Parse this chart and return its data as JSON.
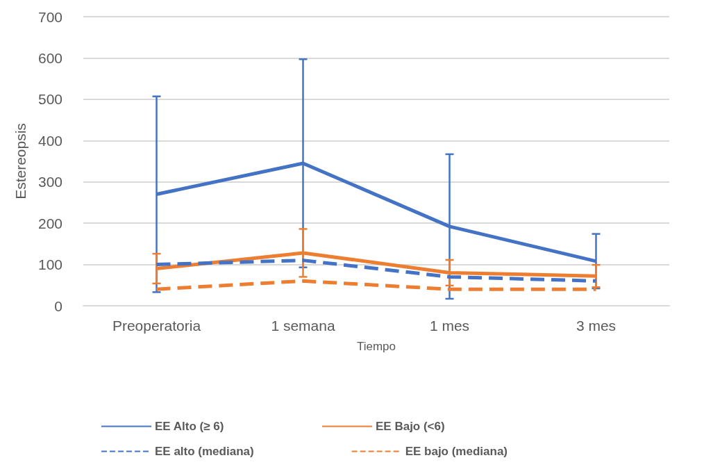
{
  "chart_data": {
    "type": "line",
    "xlabel": "Tiempo",
    "ylabel": "Estereopsis",
    "categories": [
      "Preoperatoria",
      "1 semana",
      "1 mes",
      "3 mes"
    ],
    "series": [
      {
        "name": "EE Alto (≥ 6)",
        "color": "#4472c4",
        "values": [
          270,
          345,
          192,
          108
        ],
        "errors": [
          237,
          252,
          175,
          66
        ],
        "line_style": "solid"
      },
      {
        "name": "EE Bajo (<6)",
        "color": "#ed7d31",
        "values": [
          90,
          128,
          80,
          72
        ],
        "errors": [
          36,
          58,
          31,
          27
        ],
        "line_style": "solid"
      },
      {
        "name": "EE alto (mediana)",
        "color": "#4472c4",
        "values": [
          100,
          110,
          70,
          60
        ],
        "line_style": "dashed"
      },
      {
        "name": "EE bajo (mediana)",
        "color": "#ed7d31",
        "values": [
          40,
          60,
          40,
          40
        ],
        "line_style": "dashed"
      }
    ],
    "ylim": [
      0,
      700
    ],
    "yticks": [
      0,
      100,
      200,
      300,
      400,
      500,
      600,
      700
    ],
    "grid": "y",
    "legend": "bottom",
    "marker": "none"
  }
}
